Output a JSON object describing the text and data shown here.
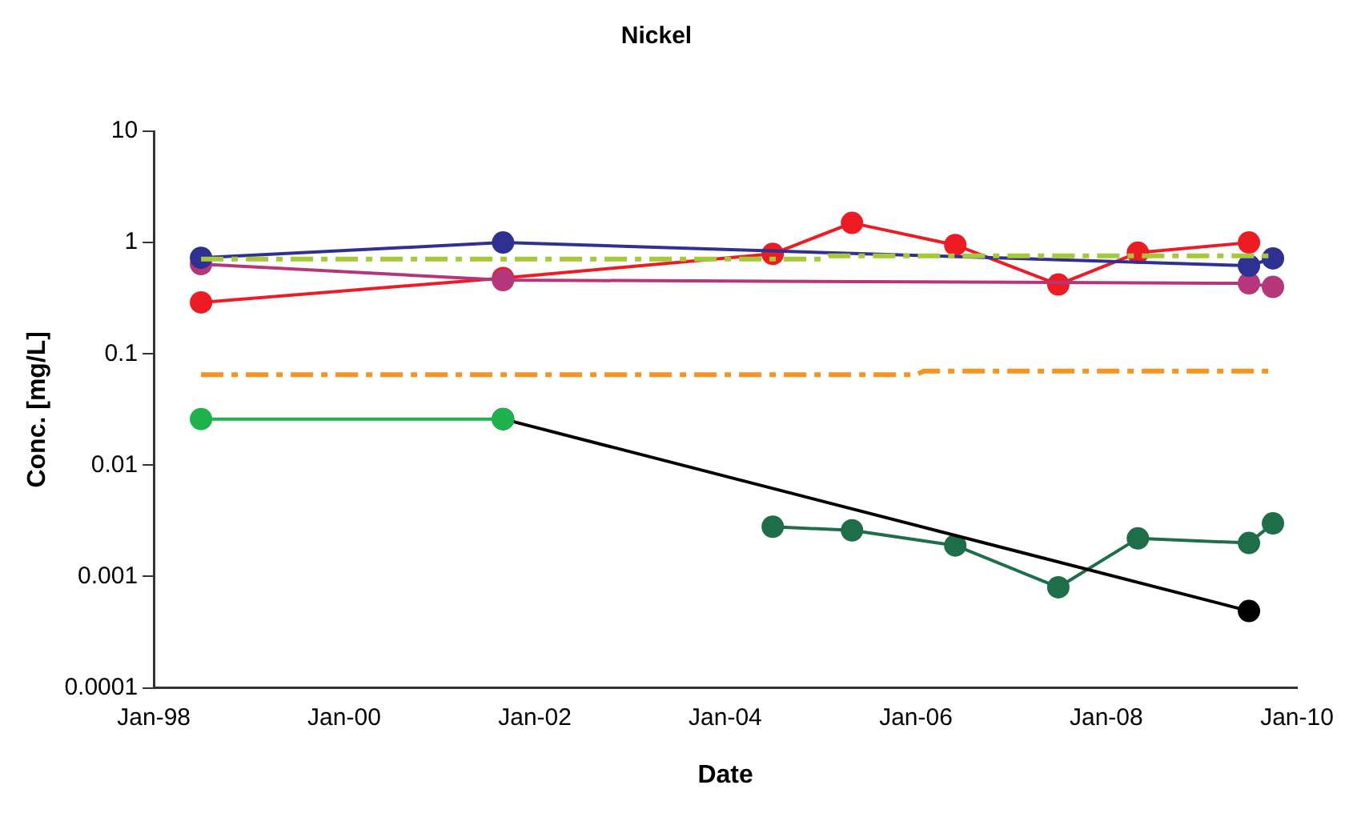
{
  "chart_data": {
    "type": "line",
    "title": "Nickel",
    "xlabel": "Date",
    "ylabel": "Conc. [mg/L]",
    "log": "y",
    "ylim": [
      0.0001,
      10
    ],
    "yticks": [
      0.0001,
      0.001,
      0.01,
      0.1,
      1,
      10
    ],
    "xlim": [
      "1998-01",
      "2010-01"
    ],
    "xticks": [
      {
        "value": "1998-01",
        "label": "Jan-98"
      },
      {
        "value": "2000-01",
        "label": "Jan-00"
      },
      {
        "value": "2002-01",
        "label": "Jan-02"
      },
      {
        "value": "2004-01",
        "label": "Jan-04"
      },
      {
        "value": "2006-01",
        "label": "Jan-06"
      },
      {
        "value": "2008-01",
        "label": "Jan-08"
      },
      {
        "value": "2010-01",
        "label": "Jan-10"
      }
    ],
    "grid": false,
    "legend": false,
    "marker": "circle",
    "line_style": "solid",
    "series": [
      {
        "color": "#f7941d",
        "marker": "none",
        "line_style": "dashed",
        "x": [
          "1998-07",
          "2006-01",
          "2006-02",
          "2009-10"
        ],
        "values": [
          0.065,
          0.065,
          0.07,
          0.07
        ]
      },
      {
        "color": "#a6c93a",
        "marker": "none",
        "line_style": "dashed",
        "x": [
          "1998-07",
          "2005-01",
          "2005-02",
          "2009-10"
        ],
        "values": [
          0.71,
          0.71,
          0.76,
          0.76
        ]
      },
      {
        "color": "#2e3192",
        "x": [
          "1998-07",
          "2001-09",
          "2009-07",
          "2009-10"
        ],
        "values": [
          0.73,
          1.0,
          0.62,
          0.72
        ]
      },
      {
        "color": "#b5367a",
        "x": [
          "1998-07",
          "2001-09",
          "2009-07",
          "2009-10"
        ],
        "values": [
          0.64,
          0.46,
          0.43,
          0.4
        ]
      },
      {
        "color": "#ed1c24",
        "x": [
          "1998-07",
          "2001-09",
          "2004-07",
          "2005-05",
          "2006-06",
          "2007-07",
          "2008-05",
          "2009-07"
        ],
        "values": [
          0.29,
          0.48,
          0.79,
          1.5,
          0.95,
          0.42,
          0.81,
          1.0
        ]
      },
      {
        "color": "#1db24b",
        "x": [
          "1998-07",
          "2001-09"
        ],
        "values": [
          0.026,
          0.026
        ]
      },
      {
        "color": "#000000",
        "x": [
          "2001-09",
          "2009-07"
        ],
        "values": [
          0.026,
          0.00049
        ]
      },
      {
        "color": "#1e6e4a",
        "x": [
          "2004-07",
          "2005-05",
          "2006-06",
          "2007-07",
          "2008-05",
          "2009-07",
          "2009-10"
        ],
        "values": [
          0.0028,
          0.0026,
          0.0019,
          0.0008,
          0.0022,
          0.002,
          0.003
        ]
      }
    ]
  }
}
